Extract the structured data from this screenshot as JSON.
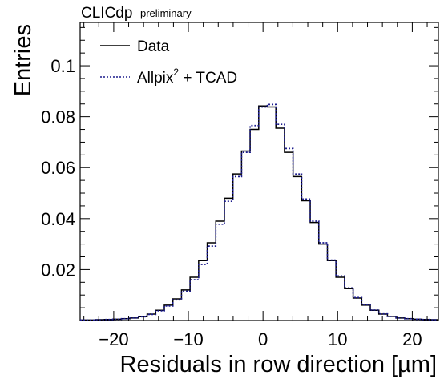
{
  "chart_data": {
    "type": "line",
    "header_main": "CLICdp",
    "header_sub": "preliminary",
    "xlabel": "Residuals in row direction [µm]",
    "ylabel": "Entries",
    "xlim": [
      -24.5,
      23.5
    ],
    "ylim": [
      0,
      0.117
    ],
    "x_ticks": [
      -20,
      -10,
      0,
      10,
      20
    ],
    "y_ticks": [
      0.02,
      0.04,
      0.06,
      0.08,
      0.1
    ],
    "x_tick_labels": [
      "−20",
      "−10",
      "0",
      "10",
      "20"
    ],
    "y_tick_labels": [
      "0.02",
      "0.04",
      "0.06",
      "0.08",
      "0.1"
    ],
    "legend_position": "top-left",
    "bin_width": 1.15,
    "x": [
      -24.15,
      -23.0,
      -21.85,
      -20.7,
      -19.55,
      -18.4,
      -17.25,
      -16.1,
      -14.95,
      -13.8,
      -12.65,
      -11.5,
      -10.35,
      -9.2,
      -8.05,
      -6.9,
      -5.75,
      -4.6,
      -3.45,
      -2.3,
      -1.15,
      0.0,
      1.15,
      2.3,
      3.45,
      4.6,
      5.75,
      6.9,
      8.05,
      9.2,
      10.35,
      11.5,
      12.65,
      13.8,
      14.95,
      16.1,
      17.25,
      18.4,
      19.55,
      20.7,
      21.85,
      23.0
    ],
    "series": [
      {
        "name": "Data",
        "style": "solid",
        "color": "#000000",
        "values": [
          0.0002,
          0.0002,
          0.0003,
          0.0004,
          0.0005,
          0.0007,
          0.001,
          0.0015,
          0.0025,
          0.004,
          0.006,
          0.0085,
          0.012,
          0.017,
          0.0235,
          0.0305,
          0.039,
          0.048,
          0.0575,
          0.0665,
          0.075,
          0.0842,
          0.0838,
          0.0755,
          0.066,
          0.0565,
          0.047,
          0.0385,
          0.03,
          0.0235,
          0.017,
          0.0125,
          0.0088,
          0.006,
          0.004,
          0.0025,
          0.0016,
          0.001,
          0.0007,
          0.0005,
          0.0004,
          0.0003
        ]
      },
      {
        "name": "Allpix",
        "name_sup": "2",
        "name_suffix": " + TCAD",
        "style": "dotted",
        "color": "#1a1a8c",
        "values": [
          0.0002,
          0.0002,
          0.0003,
          0.0004,
          0.0005,
          0.0007,
          0.001,
          0.0015,
          0.0024,
          0.0038,
          0.0057,
          0.0081,
          0.0115,
          0.016,
          0.022,
          0.0292,
          0.0378,
          0.0468,
          0.0565,
          0.066,
          0.0765,
          0.0838,
          0.0848,
          0.077,
          0.0675,
          0.0575,
          0.0477,
          0.039,
          0.0305,
          0.0237,
          0.0175,
          0.0128,
          0.009,
          0.0062,
          0.0041,
          0.0026,
          0.0016,
          0.001,
          0.0007,
          0.0005,
          0.0004,
          0.0003
        ]
      }
    ]
  }
}
